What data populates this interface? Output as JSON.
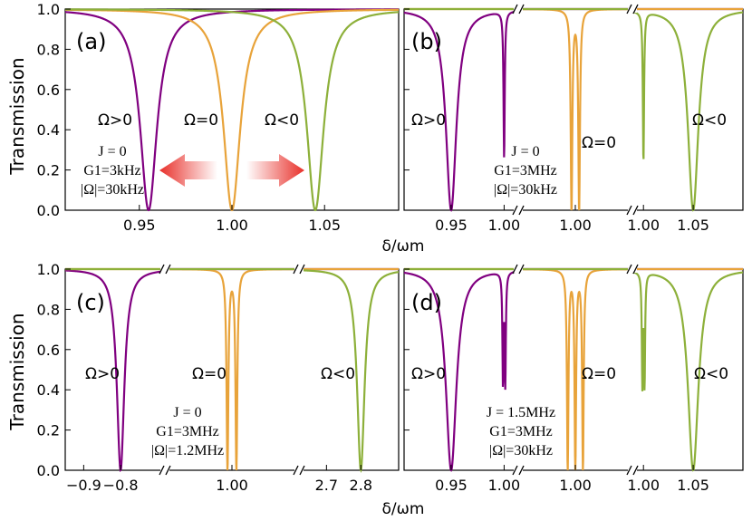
{
  "colors": {
    "purple": "#800080",
    "orange": "#E8A33A",
    "green": "#8DB03A",
    "arrow": "#E8302A"
  },
  "y_axis_title": "Transmission",
  "x_axis_title": "δ/ωm",
  "chart_data": [
    {
      "type": "line",
      "panel": "(a)",
      "ylim": [
        0,
        1
      ],
      "yticks": [
        "0.0",
        "0.2",
        "0.4",
        "0.6",
        "0.8",
        "1.0"
      ],
      "xlim": [
        0.91,
        1.09
      ],
      "xticks": [
        "0.95",
        "1.00",
        "1.05"
      ],
      "xlabel": "δ/ωm",
      "ylabel": "Transmission",
      "series": [
        {
          "name": "Ω>0",
          "color": "purple",
          "dips": [
            {
              "x": 0.955,
              "width": 0.012,
              "depth": 1.0
            }
          ]
        },
        {
          "name": "Ω=0",
          "color": "orange",
          "dips": [
            {
              "x": 1.0,
              "width": 0.012,
              "depth": 1.0
            }
          ]
        },
        {
          "name": "Ω<0",
          "color": "green",
          "dips": [
            {
              "x": 1.045,
              "width": 0.012,
              "depth": 1.0
            }
          ]
        }
      ],
      "annotations": [
        "Ω>0",
        "Ω=0",
        "Ω<0"
      ],
      "params": [
        "J = 0",
        "G1=3kHz",
        "|Ω|=30kHz"
      ]
    },
    {
      "type": "line",
      "panel": "(b)",
      "ylim": [
        0,
        1
      ],
      "xticks": [
        "0.95",
        "1.00",
        "1.00",
        "1.00",
        "1.05"
      ],
      "xlabel": "δ/ωm",
      "series": [
        {
          "name": "Ω>0",
          "color": "purple",
          "dips": [
            {
              "x": 0.955,
              "depth": 1.0
            },
            {
              "x": 1.0,
              "depth": 0.73
            }
          ]
        },
        {
          "name": "Ω=0",
          "color": "orange",
          "dips": [
            {
              "x": 0.999,
              "depth": 1.0
            },
            {
              "x": 1.001,
              "depth": 1.0
            }
          ]
        },
        {
          "name": "Ω<0",
          "color": "green",
          "dips": [
            {
              "x": 1.0,
              "depth": 0.75
            },
            {
              "x": 1.045,
              "depth": 1.0
            }
          ]
        }
      ],
      "annotations": [
        "Ω>0",
        "Ω=0",
        "Ω<0"
      ],
      "params": [
        "J = 0",
        "G1=3MHz",
        "|Ω|=30kHz"
      ]
    },
    {
      "type": "line",
      "panel": "(c)",
      "ylim": [
        0,
        1
      ],
      "yticks": [
        "0.0",
        "0.2",
        "0.4",
        "0.6",
        "0.8",
        "1.0"
      ],
      "xticks": [
        "−0.9",
        "−0.8",
        "1.00",
        "2.7",
        "2.8"
      ],
      "xlabel": "δ/ωm",
      "ylabel": "Transmission",
      "series": [
        {
          "name": "Ω>0",
          "color": "purple",
          "dips": [
            {
              "x": -0.8,
              "depth": 1.0
            }
          ]
        },
        {
          "name": "Ω=0",
          "color": "orange",
          "dips": [
            {
              "x": 0.999,
              "depth": 1.0
            },
            {
              "x": 1.001,
              "depth": 1.0
            }
          ]
        },
        {
          "name": "Ω<0",
          "color": "green",
          "dips": [
            {
              "x": 2.8,
              "depth": 1.0
            }
          ]
        }
      ],
      "annotations": [
        "Ω>0",
        "Ω=0",
        "Ω<0"
      ],
      "params": [
        "J = 0",
        "G1=3MHz",
        "|Ω|=1.2MHz"
      ]
    },
    {
      "type": "line",
      "panel": "(d)",
      "ylim": [
        0,
        1
      ],
      "xticks": [
        "0.95",
        "1.00",
        "1.00",
        "1.00",
        "1.05"
      ],
      "xlabel": "δ/ωm",
      "series": [
        {
          "name": "Ω>0",
          "color": "purple",
          "dips": [
            {
              "x": 0.955,
              "depth": 1.0
            },
            {
              "x": 0.999,
              "depth": 0.55
            },
            {
              "x": 1.001,
              "depth": 0.55
            }
          ]
        },
        {
          "name": "Ω=0",
          "color": "orange",
          "dips": [
            {
              "x": 0.998,
              "depth": 1.0
            },
            {
              "x": 1.0,
              "depth": 1.0
            },
            {
              "x": 1.002,
              "depth": 1.0
            }
          ]
        },
        {
          "name": "Ω<0",
          "color": "green",
          "dips": [
            {
              "x": 0.999,
              "depth": 0.55
            },
            {
              "x": 1.001,
              "depth": 0.55
            },
            {
              "x": 1.045,
              "depth": 1.0
            }
          ]
        }
      ],
      "annotations": [
        "Ω>0",
        "Ω=0",
        "Ω<0"
      ],
      "params": [
        "J = 1.5MHz",
        "G1=3MHz",
        "|Ω|=30kHz"
      ]
    }
  ]
}
